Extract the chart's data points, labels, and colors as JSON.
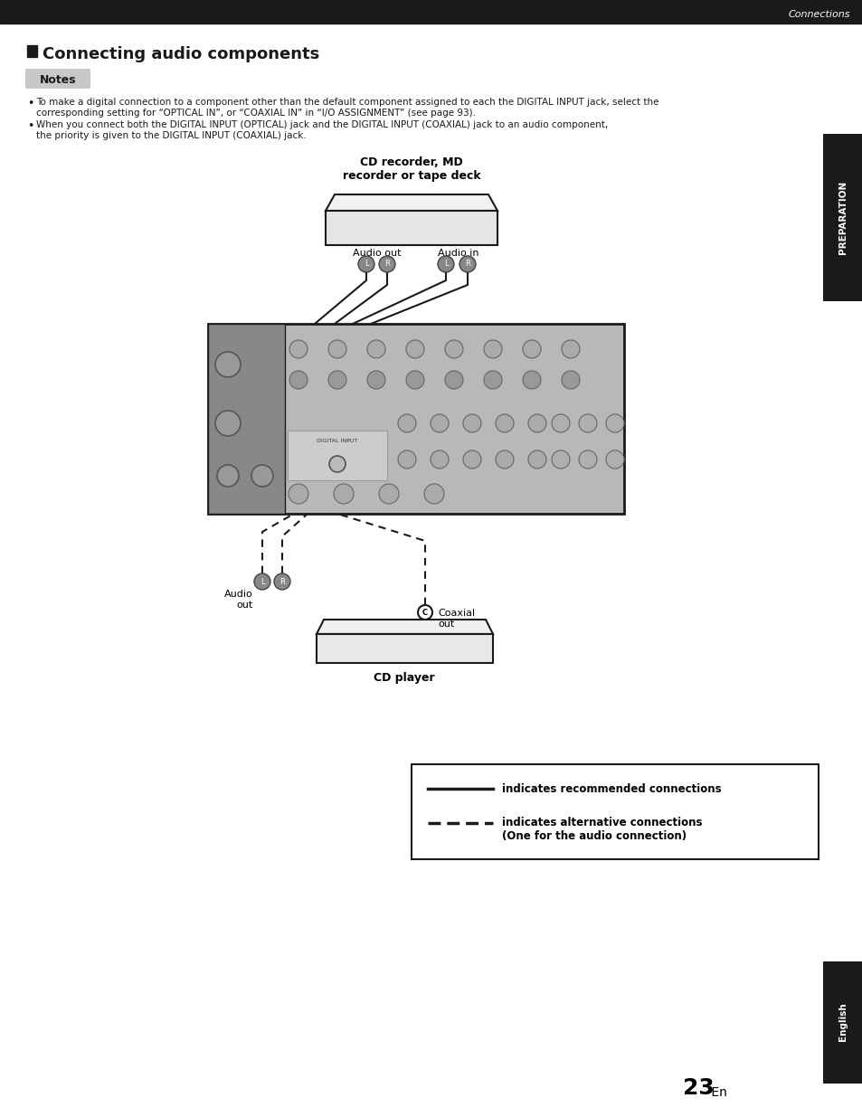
{
  "page_bg": "#ffffff",
  "header_bg": "#1a1a1a",
  "header_text": "Connections",
  "header_text_color": "#ffffff",
  "title_marker_color": "#1a1a1a",
  "title_text": "Connecting audio components",
  "title_text_color": "#1a1a1a",
  "notes_bg": "#c8c8c8",
  "notes_text": "Notes",
  "bullet1_line1": "To make a digital connection to a component other than the default component assigned to each the DIGITAL INPUT jack, select the",
  "bullet1_line2": "corresponding setting for “OPTICAL IN”, or “COAXIAL IN” in “I/O ASSIGNMENT” (see page 93).",
  "bullet2_line1": "When you connect both the DIGITAL INPUT (OPTICAL) jack and the DIGITAL INPUT (COAXIAL) jack to an audio component,",
  "bullet2_line2": "the priority is given to the DIGITAL INPUT (COAXIAL) jack.",
  "cd_recorder_label": "CD recorder, MD\nrecorder or tape deck",
  "audio_out_label": "Audio out",
  "audio_in_label": "Audio in",
  "coaxial_out_label": "Coaxial\nout",
  "audio_out2_label": "Audio\nout",
  "cd_player_label": "CD player",
  "legend_solid_text": "indicates recommended connections",
  "legend_dashed_text": "indicates alternative connections\n(One for the audio connection)",
  "page_number": "23",
  "page_suffix": " En",
  "preparation_text": "PREPARATION",
  "english_text": "English",
  "tab_bg": "#1a1a1a",
  "tab_text_color": "#ffffff"
}
